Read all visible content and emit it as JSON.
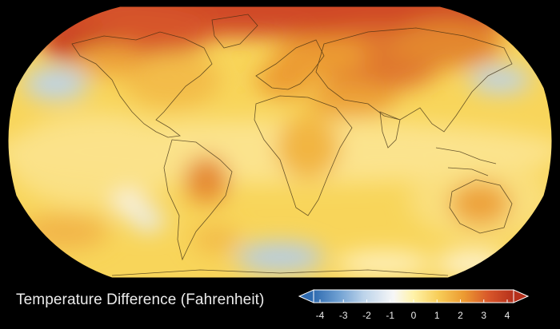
{
  "legend": {
    "title": "Temperature Difference (Fahrenheit)",
    "ticks": [
      "-4",
      "-3",
      "-2",
      "-1",
      "0",
      "1",
      "2",
      "3",
      "4"
    ],
    "range": [
      -4,
      4
    ],
    "colors": [
      "#2f6bb0",
      "#6fa0d2",
      "#bcd3ea",
      "#f7f7f7",
      "#fff2a8",
      "#f7cd58",
      "#ec9b32",
      "#d8572a",
      "#b5301c"
    ]
  },
  "map": {
    "projection": "Robinson",
    "base_color": "#f8d55a",
    "warm_color": "#d8572a",
    "cool_color": "#bcd3ea",
    "background": "#000000"
  }
}
